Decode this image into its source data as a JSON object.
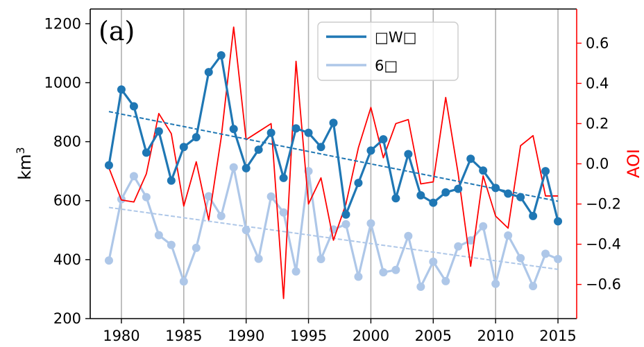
{
  "chart_data": {
    "type": "line",
    "panel_label": "(a)",
    "x_ticks": [
      1980,
      1985,
      1990,
      1995,
      2000,
      2005,
      2010,
      2015
    ],
    "xlim": [
      1977.5,
      2016.5
    ],
    "grid": "vertical lines at x ticks",
    "y_left": {
      "label_base": "km",
      "label_sup": "3",
      "ylim": [
        200,
        1250
      ],
      "ticks": [
        200,
        400,
        600,
        800,
        1000,
        1200
      ],
      "tick_labels": [
        "200",
        "400",
        "600",
        "800",
        "1000",
        "1200"
      ]
    },
    "y_right": {
      "label": "AOI",
      "color": "#ff0000",
      "ylim": [
        -0.77,
        0.77
      ],
      "ticks": [
        -0.6,
        -0.4,
        -0.2,
        0.0,
        0.2,
        0.4,
        0.6
      ],
      "tick_labels": [
        "−0.6",
        "−0.4",
        "−0.2",
        "0.0",
        "0.2",
        "0.4",
        "0.6"
      ]
    },
    "x": [
      1979,
      1980,
      1981,
      1982,
      1983,
      1984,
      1985,
      1986,
      1987,
      1988,
      1989,
      1990,
      1991,
      1992,
      1993,
      1994,
      1995,
      1996,
      1997,
      1998,
      1999,
      2000,
      2001,
      2002,
      2003,
      2004,
      2005,
      2006,
      2007,
      2008,
      2009,
      2010,
      2011,
      2012,
      2013,
      2014,
      2015
    ],
    "series": [
      {
        "name": "□W□",
        "axis": "left",
        "color": "#1f77b4",
        "markers": true,
        "values": [
          720,
          977,
          920,
          763,
          835,
          668,
          782,
          815,
          1036,
          1093,
          843,
          710,
          773,
          830,
          677,
          845,
          830,
          782,
          864,
          553,
          660,
          770,
          808,
          608,
          758,
          618,
          593,
          628,
          640,
          742,
          702,
          643,
          624,
          612,
          548,
          700,
          530
        ],
        "trend": [
          902,
          598
        ]
      },
      {
        "name": "6□",
        "axis": "left",
        "color": "#aec7e8",
        "markers": true,
        "values": [
          397,
          605,
          683,
          612,
          483,
          450,
          326,
          440,
          615,
          548,
          713,
          500,
          403,
          614,
          560,
          360,
          700,
          402,
          502,
          520,
          342,
          523,
          357,
          365,
          480,
          308,
          393,
          327,
          445,
          465,
          513,
          318,
          482,
          405,
          310,
          420,
          402
        ],
        "trend": [
          577,
          367
        ]
      },
      {
        "name": "AOI",
        "axis": "right",
        "color": "#ff0000",
        "markers": false,
        "values": [
          -0.02,
          -0.18,
          -0.19,
          -0.05,
          0.25,
          0.15,
          -0.21,
          0.01,
          -0.28,
          0.13,
          0.68,
          0.12,
          0.16,
          0.2,
          -0.67,
          0.51,
          -0.2,
          -0.07,
          -0.38,
          -0.2,
          0.08,
          0.28,
          0.03,
          0.2,
          0.22,
          -0.1,
          -0.09,
          0.33,
          -0.05,
          -0.51,
          -0.06,
          -0.26,
          -0.32,
          0.09,
          0.14,
          -0.16,
          -0.16
        ]
      }
    ],
    "legend": {
      "placement": "top-center",
      "entries": [
        {
          "label": "□W□",
          "color": "#1f77b4"
        },
        {
          "label": "6□",
          "color": "#aec7e8"
        }
      ]
    }
  }
}
